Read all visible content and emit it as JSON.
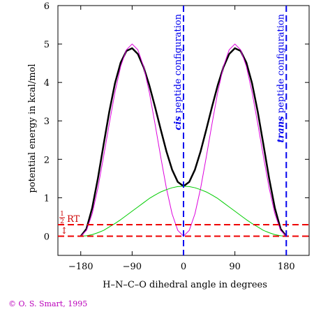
{
  "chart_data": {
    "type": "line",
    "xlabel": "H–N–C–O dihedral angle in degrees",
    "ylabel": "potential energy in kcal/mol",
    "xlim": [
      -220,
      220
    ],
    "ylim": [
      -0.5,
      6
    ],
    "xticks": [
      -180,
      -90,
      0,
      90,
      180
    ],
    "xtick_labels": [
      "−180",
      "−90",
      "0",
      "90",
      "180"
    ],
    "yticks": [
      0,
      1,
      2,
      3,
      4,
      5,
      6
    ],
    "ytick_labels": [
      "0",
      "1",
      "2",
      "3",
      "4",
      "5",
      "6"
    ],
    "grid": false,
    "legend": "none",
    "series": [
      {
        "color": "#000000",
        "style": "solid-thick",
        "x": [
          -180,
          -170,
          -160,
          -150,
          -140,
          -130,
          -120,
          -110,
          -100,
          -90,
          -80,
          -70,
          -60,
          -50,
          -40,
          -30,
          -20,
          -10,
          0,
          10,
          20,
          30,
          40,
          50,
          60,
          70,
          80,
          90,
          100,
          110,
          120,
          130,
          140,
          150,
          160,
          170,
          180
        ],
        "y": [
          0.0,
          0.19,
          0.73,
          1.5,
          2.38,
          3.24,
          3.98,
          4.52,
          4.82,
          4.89,
          4.74,
          4.4,
          3.93,
          3.37,
          2.78,
          2.21,
          1.73,
          1.41,
          1.3,
          1.41,
          1.73,
          2.21,
          2.78,
          3.37,
          3.93,
          4.4,
          4.74,
          4.89,
          4.82,
          4.52,
          3.98,
          3.24,
          2.38,
          1.5,
          0.73,
          0.19,
          0.0
        ]
      },
      {
        "color": "#dd00dd",
        "style": "thin",
        "x": [
          -180,
          -170,
          -160,
          -150,
          -140,
          -130,
          -120,
          -110,
          -100,
          -90,
          -80,
          -70,
          -60,
          -50,
          -40,
          -30,
          -20,
          -10,
          0,
          10,
          20,
          30,
          40,
          50,
          60,
          70,
          80,
          90,
          100,
          110,
          120,
          130,
          140,
          150,
          160,
          170,
          180
        ],
        "y": [
          0.0,
          0.15,
          0.58,
          1.25,
          2.07,
          2.93,
          3.75,
          4.42,
          4.85,
          5.0,
          4.85,
          4.42,
          3.75,
          2.93,
          2.07,
          1.25,
          0.58,
          0.15,
          0.0,
          0.15,
          0.58,
          1.25,
          2.07,
          2.93,
          3.75,
          4.42,
          4.85,
          5.0,
          4.85,
          4.42,
          3.75,
          2.93,
          2.07,
          1.25,
          0.58,
          0.15,
          0.0
        ]
      },
      {
        "color": "#00cc00",
        "style": "thin",
        "x": [
          -180,
          -170,
          -160,
          -150,
          -140,
          -130,
          -120,
          -110,
          -100,
          -90,
          -80,
          -70,
          -60,
          -50,
          -40,
          -30,
          -20,
          -10,
          0,
          10,
          20,
          30,
          40,
          50,
          60,
          70,
          80,
          90,
          100,
          110,
          120,
          130,
          140,
          150,
          160,
          170,
          180
        ],
        "y": [
          0.0,
          0.01,
          0.04,
          0.09,
          0.15,
          0.24,
          0.33,
          0.43,
          0.54,
          0.65,
          0.76,
          0.87,
          0.98,
          1.07,
          1.15,
          1.21,
          1.26,
          1.29,
          1.3,
          1.29,
          1.26,
          1.21,
          1.15,
          1.07,
          0.98,
          0.87,
          0.76,
          0.65,
          0.54,
          0.43,
          0.33,
          0.24,
          0.15,
          0.09,
          0.04,
          0.01,
          0.0
        ]
      }
    ],
    "vlines": [
      {
        "x": 0,
        "color": "#0000ee",
        "style": "dashed",
        "label_bold": "cis",
        "label_rest": " peptide configuration"
      },
      {
        "x": 180,
        "color": "#0000ee",
        "style": "dashed",
        "label_bold": "trans",
        "label_rest": " peptide configuration"
      }
    ],
    "hlines": [
      {
        "y": 0,
        "color": "#ee0000",
        "style": "dashed"
      },
      {
        "y": 0.3,
        "color": "#ee0000",
        "style": "dashed"
      }
    ],
    "rt_annotation": {
      "fraction_num": "1",
      "fraction_den": "2",
      "label": "RT",
      "arrow": "↕"
    }
  },
  "copyright": "© O. S. Smart, 1995"
}
